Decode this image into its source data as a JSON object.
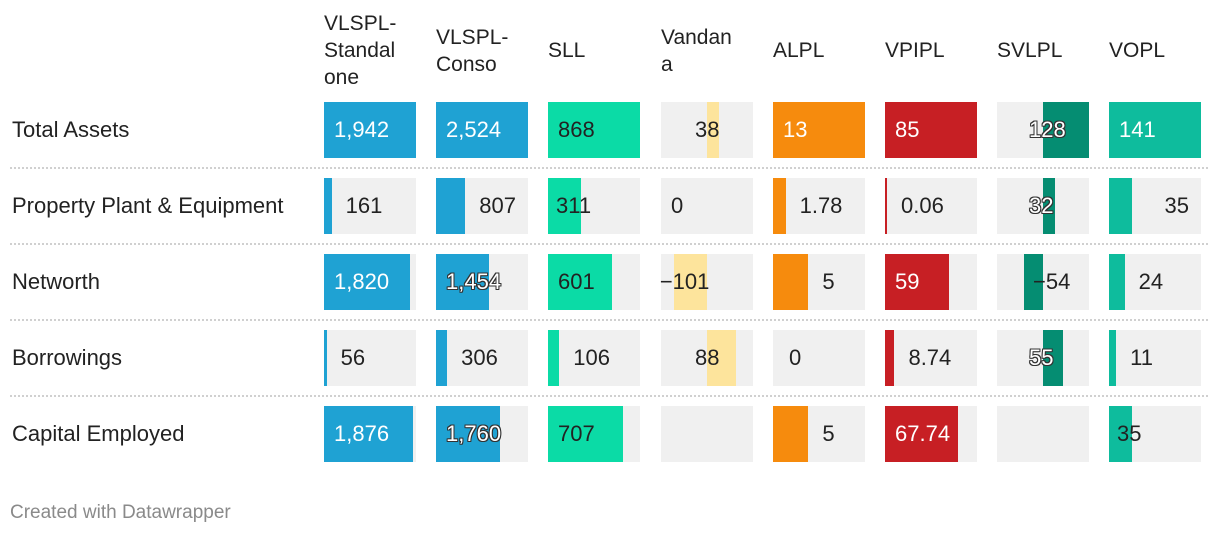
{
  "chart_data": {
    "type": "table",
    "columns": [
      {
        "key": "vlspl_standalone",
        "label": "VLSPL-Standalone",
        "header_lines": [
          "VLSPL-",
          "Standal",
          "one"
        ],
        "color": "#1fa2d3"
      },
      {
        "key": "vlspl_conso",
        "label": "VLSPL-Conso",
        "header_lines": [
          "VLSPL-",
          "Conso"
        ],
        "color": "#1fa2d3"
      },
      {
        "key": "sll",
        "label": "SLL",
        "header_lines": [
          "SLL"
        ],
        "color": "#0bdba6"
      },
      {
        "key": "vandana",
        "label": "Vandana",
        "header_lines": [
          "Vandan",
          "a"
        ],
        "color": "#fde49c"
      },
      {
        "key": "alpl",
        "label": "ALPL",
        "header_lines": [
          "ALPL"
        ],
        "color": "#f68b0d"
      },
      {
        "key": "vpipl",
        "label": "VPIPL",
        "header_lines": [
          "VPIPL"
        ],
        "color": "#c71f24"
      },
      {
        "key": "svlpl",
        "label": "SVLPL",
        "header_lines": [
          "SVLPL"
        ],
        "color": "#058d72"
      },
      {
        "key": "vopl",
        "label": "VOPL",
        "header_lines": [
          "VOPL"
        ],
        "color": "#0ebc9d"
      }
    ],
    "rows": [
      {
        "label": "Total Assets",
        "values": [
          1942,
          2524,
          868,
          38,
          13,
          85,
          128,
          141
        ],
        "display": [
          "1,942",
          "2,524",
          "868",
          "38",
          "13",
          "85",
          "128",
          "141"
        ]
      },
      {
        "label": "Property Plant & Equipment",
        "values": [
          161,
          807,
          311,
          0,
          1.78,
          0.06,
          32,
          35
        ],
        "display": [
          "161",
          "807",
          "311",
          "0",
          "1.78",
          "0.06",
          "32",
          "35"
        ]
      },
      {
        "label": "Networth",
        "values": [
          1820,
          1454,
          601,
          -101,
          5,
          59,
          -54,
          24
        ],
        "display": [
          "1,820",
          "1,454",
          "601",
          "−101",
          "5",
          "59",
          "−54",
          "24"
        ]
      },
      {
        "label": "Borrowings",
        "values": [
          56,
          306,
          106,
          88,
          0,
          8.74,
          55,
          11
        ],
        "display": [
          "56",
          "306",
          "106",
          "88",
          "0",
          "8.74",
          "55",
          "11"
        ]
      },
      {
        "label": "Capital Employed",
        "values": [
          1876,
          1760,
          707,
          null,
          5,
          67.74,
          null,
          35
        ],
        "display": [
          "1,876",
          "1,760",
          "707",
          "",
          "5",
          "67.74",
          "",
          "35"
        ]
      }
    ],
    "column_ranges": [
      [
        0,
        1942
      ],
      [
        0,
        2524
      ],
      [
        0,
        868
      ],
      [
        -140,
        140
      ],
      [
        0,
        13
      ],
      [
        0,
        85
      ],
      [
        -128,
        128
      ],
      [
        0,
        141
      ]
    ]
  },
  "footer": {
    "credit": "Created with Datawrapper"
  }
}
